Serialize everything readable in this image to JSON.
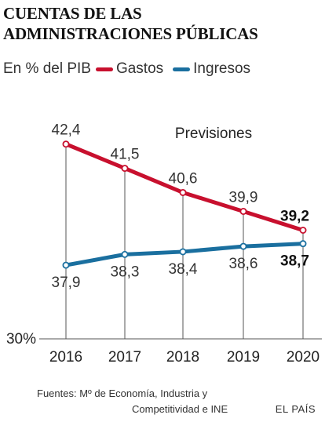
{
  "header": {
    "title_line1": "CUENTAS DE LAS",
    "title_line2": "ADMINISTRACIONES PÚBLICAS"
  },
  "legend": {
    "unit": "En % del PIB",
    "series1_label": "Gastos",
    "series2_label": "Ingresos"
  },
  "chart_data": {
    "type": "line",
    "x": [
      "2016",
      "2017",
      "2018",
      "2019",
      "2020"
    ],
    "series": [
      {
        "name": "Gastos",
        "values": [
          42.4,
          41.5,
          40.6,
          39.9,
          39.2
        ],
        "labels": [
          "42,4",
          "41,5",
          "40,6",
          "39,9",
          "39,2"
        ],
        "color": "#c8102e"
      },
      {
        "name": "Ingresos",
        "values": [
          37.9,
          38.3,
          38.4,
          38.6,
          38.7
        ],
        "labels": [
          "37,9",
          "38,3",
          "38,4",
          "38,6",
          "38,7"
        ],
        "color": "#1a6f9f"
      }
    ],
    "ylabel_tick": "30%",
    "annotation": "Previsiones",
    "grid": false,
    "legend": "top"
  },
  "footer": {
    "source_line1": "Fuentes: Mº de Economía, Industria y",
    "source_line2": "Competitividad e INE",
    "brand": "EL PAÍS"
  }
}
